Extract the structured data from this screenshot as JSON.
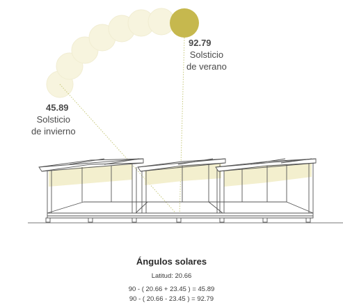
{
  "winter": {
    "angle": "45.89",
    "label_line1": "Solsticio",
    "label_line2": "de invierno"
  },
  "summer": {
    "angle": "92.79",
    "label_line1": "Solsticio",
    "label_line2": "de verano"
  },
  "caption": {
    "title": "Ángulos solares",
    "latitude": "Latitud: 20.66",
    "formula1": "90 - ( 20.66 + 23.45 ) = 45.89",
    "formula2": "90 - ( 20.66 - 23.45 ) = 92.79"
  },
  "colors": {
    "sun": "#c6b84e",
    "sun_faint": "#f4f1d8",
    "light_band": "#f2edc6",
    "structure": "#555555"
  }
}
